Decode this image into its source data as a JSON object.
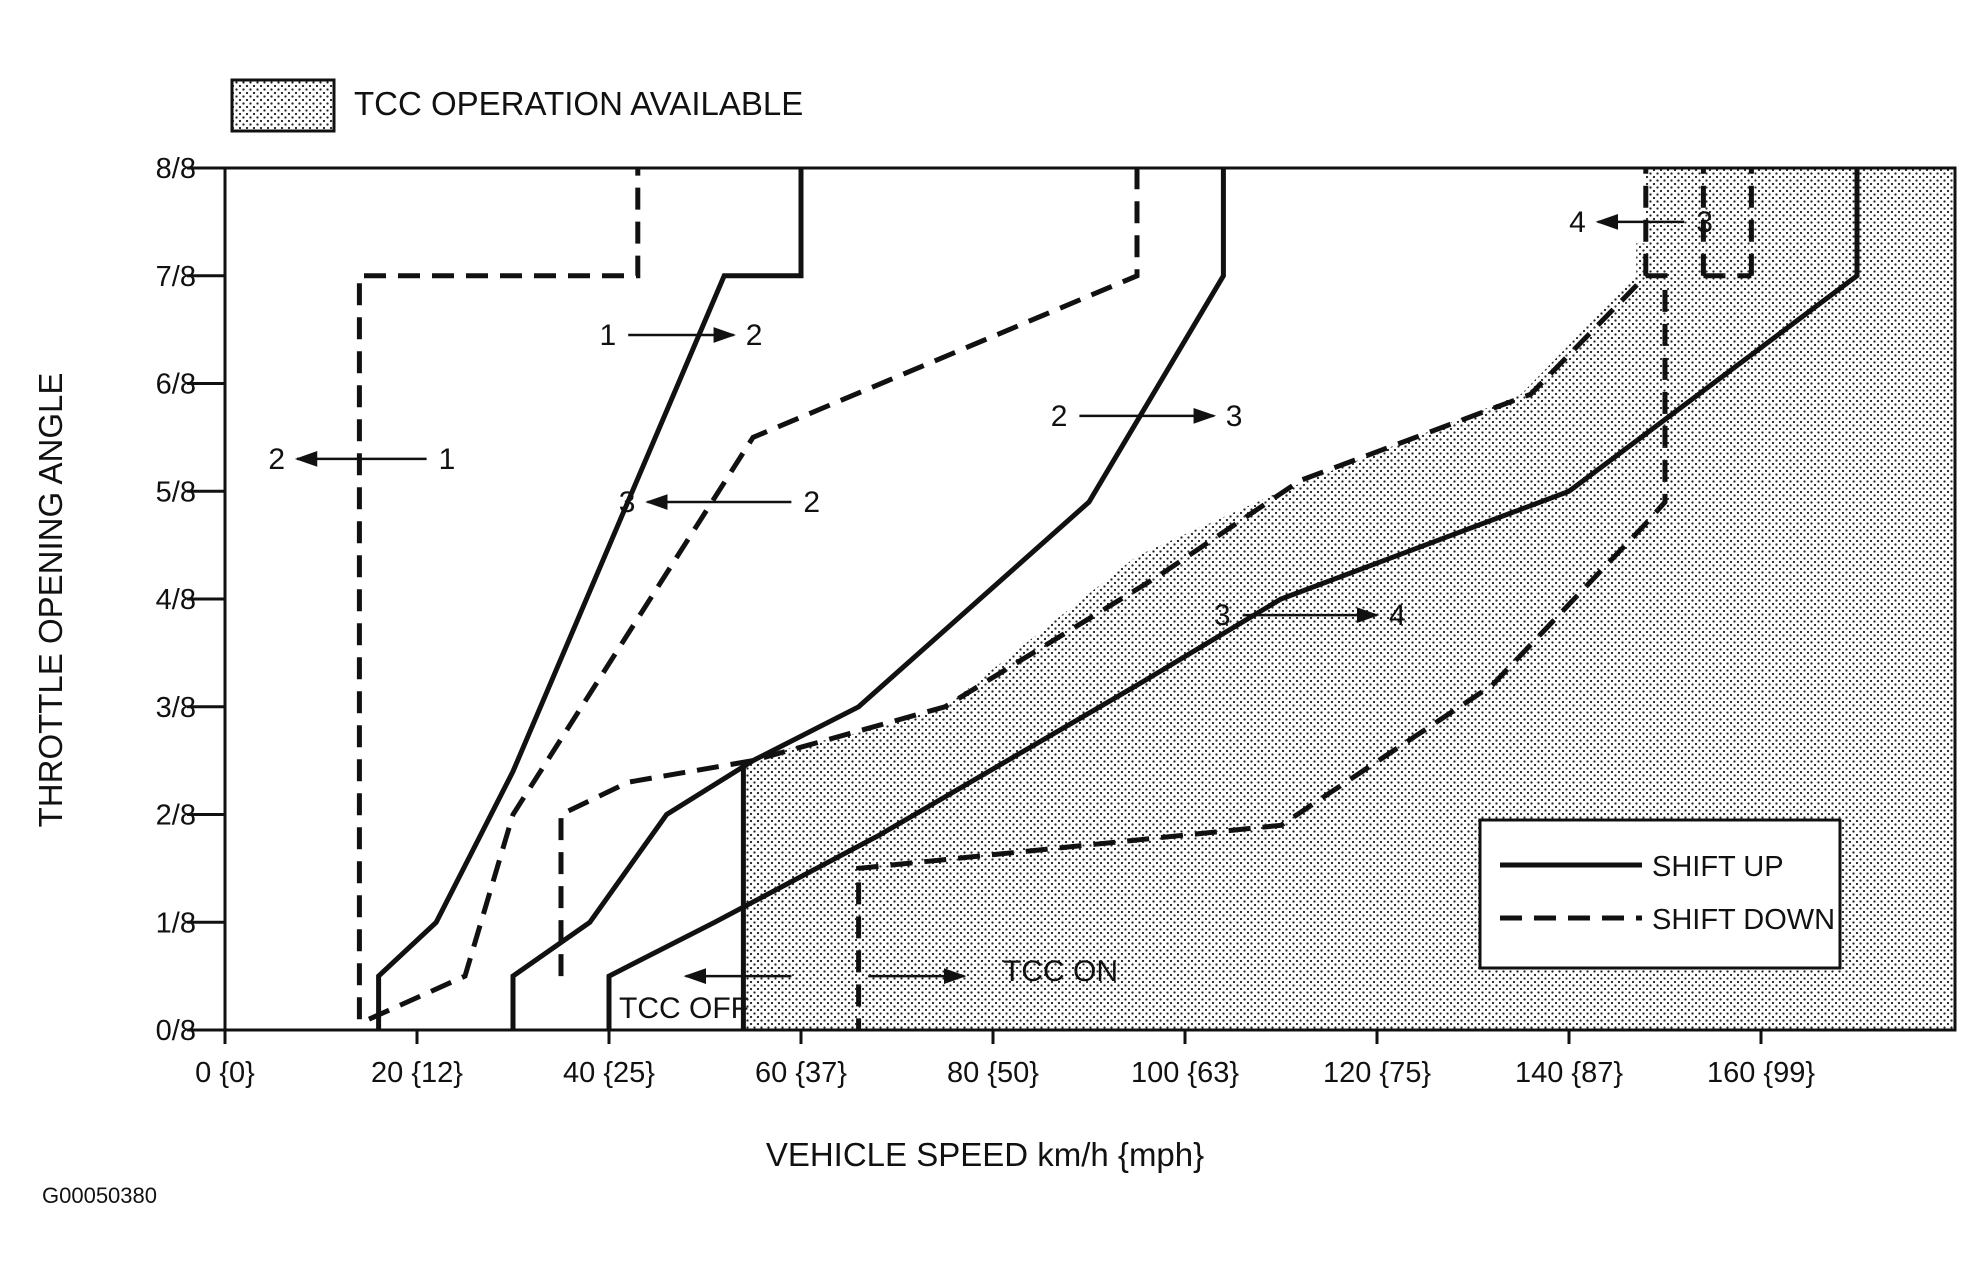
{
  "chart_data": {
    "type": "line",
    "x_axis": {
      "label": "VEHICLE SPEED  km/h {mph}",
      "range": [
        0,
        180
      ],
      "ticks": [
        {
          "value": 0,
          "label": "0 {0}"
        },
        {
          "value": 20,
          "label": "20 {12}"
        },
        {
          "value": 40,
          "label": "40 {25}"
        },
        {
          "value": 60,
          "label": "60 {37}"
        },
        {
          "value": 80,
          "label": "80 {50}"
        },
        {
          "value": 100,
          "label": "100 {63}"
        },
        {
          "value": 120,
          "label": "120 {75}"
        },
        {
          "value": 140,
          "label": "140 {87}"
        },
        {
          "value": 160,
          "label": "160 {99}"
        }
      ]
    },
    "y_axis": {
      "label": "THROTTLE OPENING ANGLE",
      "range": [
        0,
        8
      ],
      "ticks": [
        {
          "value": 0,
          "label": "0/8"
        },
        {
          "value": 1,
          "label": "1/8"
        },
        {
          "value": 2,
          "label": "2/8"
        },
        {
          "value": 3,
          "label": "3/8"
        },
        {
          "value": 4,
          "label": "4/8"
        },
        {
          "value": 5,
          "label": "5/8"
        },
        {
          "value": 6,
          "label": "6/8"
        },
        {
          "value": 7,
          "label": "7/8"
        },
        {
          "value": 8,
          "label": "8/8"
        }
      ]
    },
    "tcc_region_legend": "TCC OPERATION AVAILABLE",
    "tcc_region": [
      [
        54,
        0
      ],
      [
        54,
        2.5
      ],
      [
        58,
        2.6
      ],
      [
        68,
        2.8
      ],
      [
        75,
        3
      ],
      [
        95,
        4.4
      ],
      [
        110,
        5
      ],
      [
        135,
        5.9
      ],
      [
        147,
        7
      ],
      [
        147,
        7.3
      ],
      [
        148,
        7.3
      ],
      [
        148,
        8
      ],
      [
        180,
        8
      ],
      [
        180,
        0
      ]
    ],
    "legend": {
      "shift_up": "SHIFT UP",
      "shift_down": "SHIFT DOWN"
    },
    "series": [
      {
        "style": "solid",
        "points": [
          [
            16,
            0
          ],
          [
            16,
            0.5
          ],
          [
            22,
            1
          ],
          [
            30,
            2.4
          ],
          [
            52,
            7
          ],
          [
            60,
            7
          ],
          [
            60,
            8
          ]
        ]
      },
      {
        "style": "dashed",
        "points": [
          [
            14,
            0.1
          ],
          [
            14,
            7
          ],
          [
            43,
            7
          ],
          [
            43,
            8
          ]
        ]
      },
      {
        "style": "dashed",
        "points": [
          [
            15,
            0.1
          ],
          [
            25,
            0.5
          ],
          [
            30,
            2
          ],
          [
            55,
            5.5
          ],
          [
            95,
            7
          ],
          [
            95,
            8
          ]
        ]
      },
      {
        "style": "solid",
        "points": [
          [
            30,
            0
          ],
          [
            30,
            0.5
          ],
          [
            38,
            1
          ],
          [
            46,
            2
          ],
          [
            55,
            2.5
          ],
          [
            66,
            3
          ],
          [
            90,
            4.9
          ],
          [
            104,
            7
          ],
          [
            104,
            8
          ]
        ]
      },
      {
        "style": "dashed",
        "points": [
          [
            35,
            0.5
          ],
          [
            35,
            2
          ],
          [
            42,
            2.3
          ],
          [
            55,
            2.5
          ],
          [
            75,
            3
          ],
          [
            97,
            4.2
          ],
          [
            112,
            5.1
          ],
          [
            136,
            5.9
          ],
          [
            148,
            7
          ],
          [
            150,
            7
          ],
          [
            150,
            4.9
          ],
          [
            148,
            4.7
          ],
          [
            132,
            3.2
          ],
          [
            110,
            1.9
          ],
          [
            66,
            1.5
          ],
          [
            66,
            0
          ]
        ]
      },
      {
        "style": "solid",
        "points": [
          [
            40,
            0
          ],
          [
            40,
            0.5
          ],
          [
            51,
            1
          ],
          [
            68,
            1.8
          ],
          [
            95,
            3.2
          ],
          [
            110,
            4
          ],
          [
            140,
            5
          ],
          [
            170,
            7
          ],
          [
            170,
            8
          ]
        ]
      },
      {
        "style": "solid",
        "points": [
          [
            54,
            0
          ],
          [
            54,
            2.5
          ]
        ]
      },
      {
        "style": "dashed",
        "points": [
          [
            148,
            7
          ],
          [
            148,
            8
          ]
        ]
      },
      {
        "style": "dashed",
        "points": [
          [
            154,
            7
          ],
          [
            154,
            8
          ]
        ]
      },
      {
        "style": "dashed",
        "points": [
          [
            159,
            7
          ],
          [
            159,
            8
          ]
        ]
      },
      {
        "style": "dashed",
        "points": [
          [
            154,
            7
          ],
          [
            159,
            7
          ]
        ]
      }
    ],
    "annotations": [
      {
        "from": "1",
        "to": "2",
        "direction": "up",
        "x_from": 42,
        "x_to": 53,
        "y": 6.45
      },
      {
        "from": "1",
        "to": "2",
        "direction": "down",
        "x_from": 21,
        "x_to": 7.5,
        "y": 5.3
      },
      {
        "from": "2",
        "to": "3",
        "direction": "down",
        "x_from": 59,
        "x_to": 44,
        "y": 4.9
      },
      {
        "from": "2",
        "to": "3",
        "direction": "up",
        "x_from": 89,
        "x_to": 103,
        "y": 5.7
      },
      {
        "from": "3",
        "to": "4",
        "direction": "up",
        "x_from": 106,
        "x_to": 120,
        "y": 3.85
      },
      {
        "from": "3",
        "to": "4",
        "direction": "down",
        "x_from": 152,
        "x_to": 143,
        "y": 7.5
      }
    ],
    "tcc_labels": {
      "off": "TCC OFF",
      "on": "TCC ON"
    },
    "tcc_arrows": {
      "off": {
        "x_from": 59,
        "x_to": 48,
        "y": 0.5
      },
      "on": {
        "x_from": 67,
        "x_to": 77,
        "y": 0.5
      }
    }
  },
  "figure_id": "G00050380"
}
